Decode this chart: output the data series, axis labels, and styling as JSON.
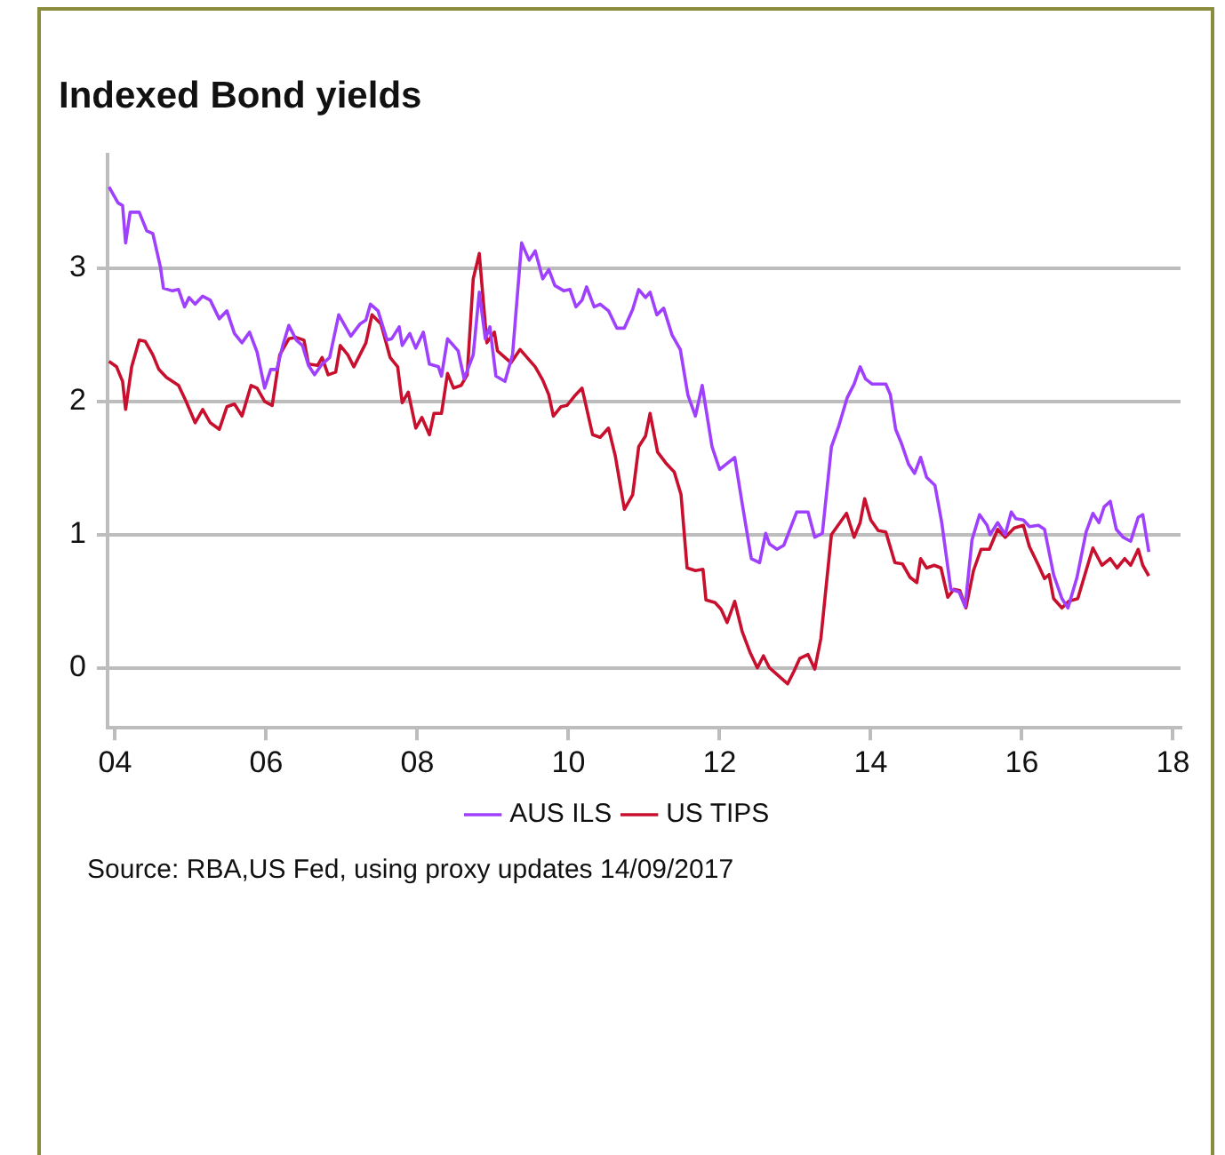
{
  "chart_data": {
    "type": "line",
    "title": "Indexed Bond yields",
    "annotations": [
      "Source: RBA,US Fed, using proxy updates 14/09/2017"
    ],
    "xlim": [
      2003.9,
      2018.1
    ],
    "xticks": [
      {
        "value": 2004,
        "label": "04"
      },
      {
        "value": 2006,
        "label": "06"
      },
      {
        "value": 2008,
        "label": "08"
      },
      {
        "value": 2010,
        "label": "10"
      },
      {
        "value": 2012,
        "label": "12"
      },
      {
        "value": 2014,
        "label": "14"
      },
      {
        "value": 2016,
        "label": "16"
      },
      {
        "value": 2018,
        "label": "18"
      }
    ],
    "ylim": [
      -0.45,
      3.85
    ],
    "yticks": [
      0,
      1,
      2,
      3
    ],
    "grid": "y",
    "legend": "bottom",
    "marker": "none",
    "line_style": "solid",
    "series": [
      {
        "name": "AUS ILS",
        "color": "#a040ff",
        "x": [
          2003.92,
          2004.04,
          2004.1,
          2004.14,
          2004.2,
          2004.32,
          2004.42,
          2004.5,
          2004.6,
          2004.64,
          2004.76,
          2004.84,
          2004.92,
          2004.98,
          2005.06,
          2005.16,
          2005.26,
          2005.38,
          2005.48,
          2005.58,
          2005.68,
          2005.78,
          2005.88,
          2005.98,
          2006.06,
          2006.14,
          2006.22,
          2006.3,
          2006.4,
          2006.48,
          2006.56,
          2006.64,
          2006.74,
          2006.84,
          2006.96,
          2007.12,
          2007.24,
          2007.32,
          2007.38,
          2007.48,
          2007.6,
          2007.66,
          2007.76,
          2007.8,
          2007.9,
          2007.98,
          2008.08,
          2008.16,
          2008.28,
          2008.32,
          2008.4,
          2008.54,
          2008.62,
          2008.74,
          2008.82,
          2008.9,
          2008.96,
          2009.04,
          2009.16,
          2009.26,
          2009.38,
          2009.48,
          2009.56,
          2009.66,
          2009.74,
          2009.82,
          2009.94,
          2010.02,
          2010.1,
          2010.18,
          2010.24,
          2010.34,
          2010.42,
          2010.53,
          2010.64,
          2010.74,
          2010.85,
          2010.93,
          2011.02,
          2011.08,
          2011.17,
          2011.26,
          2011.37,
          2011.48,
          2011.58,
          2011.68,
          2011.77,
          2011.9,
          2012.0,
          2012.2,
          2012.3,
          2012.42,
          2012.53,
          2012.61,
          2012.66,
          2012.76,
          2012.85,
          2013.02,
          2013.17,
          2013.26,
          2013.36,
          2013.48,
          2013.58,
          2013.69,
          2013.78,
          2013.86,
          2013.93,
          2014.02,
          2014.2,
          2014.26,
          2014.33,
          2014.41,
          2014.5,
          2014.58,
          2014.66,
          2014.74,
          2014.85,
          2014.94,
          2015.06,
          2015.17,
          2015.25,
          2015.34,
          2015.44,
          2015.54,
          2015.58,
          2015.68,
          2015.78,
          2015.86,
          2015.92,
          2016.02,
          2016.1,
          2016.22,
          2016.3,
          2016.42,
          2016.53,
          2016.61,
          2016.73,
          2016.85,
          2016.94,
          2017.02,
          2017.09,
          2017.17,
          2017.25,
          2017.34,
          2017.44,
          2017.54,
          2017.6,
          2017.68
        ],
        "values": [
          3.61,
          3.49,
          3.47,
          3.19,
          3.42,
          3.42,
          3.28,
          3.26,
          3.01,
          2.85,
          2.83,
          2.84,
          2.71,
          2.78,
          2.73,
          2.79,
          2.76,
          2.62,
          2.68,
          2.51,
          2.44,
          2.52,
          2.37,
          2.1,
          2.24,
          2.24,
          2.42,
          2.57,
          2.46,
          2.42,
          2.27,
          2.2,
          2.28,
          2.33,
          2.65,
          2.49,
          2.58,
          2.61,
          2.73,
          2.68,
          2.46,
          2.47,
          2.56,
          2.42,
          2.51,
          2.4,
          2.52,
          2.28,
          2.26,
          2.19,
          2.47,
          2.38,
          2.17,
          2.35,
          2.82,
          2.47,
          2.56,
          2.19,
          2.15,
          2.35,
          3.19,
          3.06,
          3.13,
          2.92,
          2.99,
          2.87,
          2.83,
          2.84,
          2.71,
          2.76,
          2.86,
          2.71,
          2.73,
          2.68,
          2.55,
          2.55,
          2.69,
          2.84,
          2.78,
          2.82,
          2.65,
          2.7,
          2.5,
          2.39,
          2.05,
          1.89,
          2.12,
          1.66,
          1.49,
          1.58,
          1.23,
          0.82,
          0.79,
          1.01,
          0.93,
          0.89,
          0.92,
          1.17,
          1.17,
          0.98,
          1.01,
          1.66,
          1.82,
          2.03,
          2.13,
          2.26,
          2.17,
          2.13,
          2.13,
          2.05,
          1.79,
          1.68,
          1.53,
          1.46,
          1.58,
          1.43,
          1.37,
          1.09,
          0.59,
          0.57,
          0.46,
          0.96,
          1.15,
          1.07,
          1.0,
          1.09,
          1.0,
          1.17,
          1.12,
          1.11,
          1.06,
          1.07,
          1.04,
          0.7,
          0.52,
          0.45,
          0.68,
          1.02,
          1.16,
          1.09,
          1.21,
          1.25,
          1.04,
          0.98,
          0.95,
          1.13,
          1.15,
          0.87
        ]
      },
      {
        "name": "US TIPS",
        "color": "#c8102e",
        "x": [
          2003.92,
          2004.02,
          2004.1,
          2004.14,
          2004.22,
          2004.32,
          2004.4,
          2004.5,
          2004.58,
          2004.68,
          2004.84,
          2004.94,
          2005.06,
          2005.16,
          2005.26,
          2005.38,
          2005.48,
          2005.58,
          2005.68,
          2005.8,
          2005.88,
          2005.98,
          2006.08,
          2006.18,
          2006.3,
          2006.4,
          2006.5,
          2006.56,
          2006.68,
          2006.74,
          2006.82,
          2006.92,
          2006.98,
          2007.08,
          2007.16,
          2007.32,
          2007.4,
          2007.52,
          2007.64,
          2007.74,
          2007.8,
          2007.88,
          2007.98,
          2008.06,
          2008.16,
          2008.22,
          2008.32,
          2008.4,
          2008.48,
          2008.58,
          2008.66,
          2008.74,
          2008.82,
          2008.92,
          2009.02,
          2009.06,
          2009.24,
          2009.36,
          2009.56,
          2009.66,
          2009.74,
          2009.8,
          2009.9,
          2009.98,
          2010.08,
          2010.18,
          2010.32,
          2010.42,
          2010.53,
          2010.62,
          2010.74,
          2010.85,
          2010.93,
          2011.02,
          2011.08,
          2011.18,
          2011.3,
          2011.4,
          2011.49,
          2011.57,
          2011.68,
          2011.78,
          2011.82,
          2011.94,
          2012.02,
          2012.1,
          2012.2,
          2012.3,
          2012.4,
          2012.5,
          2012.58,
          2012.66,
          2012.78,
          2012.9,
          2012.98,
          2013.06,
          2013.17,
          2013.26,
          2013.34,
          2013.48,
          2013.58,
          2013.68,
          2013.78,
          2013.86,
          2013.92,
          2014.0,
          2014.1,
          2014.2,
          2014.32,
          2014.42,
          2014.52,
          2014.61,
          2014.66,
          2014.74,
          2014.84,
          2014.93,
          2015.02,
          2015.1,
          2015.18,
          2015.26,
          2015.36,
          2015.46,
          2015.57,
          2015.68,
          2015.78,
          2015.9,
          2016.02,
          2016.1,
          2016.22,
          2016.3,
          2016.36,
          2016.42,
          2016.53,
          2016.62,
          2016.74,
          2016.85,
          2016.94,
          2017.06,
          2017.17,
          2017.26,
          2017.36,
          2017.44,
          2017.54,
          2017.6,
          2017.68
        ],
        "values": [
          2.3,
          2.26,
          2.15,
          1.94,
          2.26,
          2.46,
          2.45,
          2.35,
          2.24,
          2.18,
          2.12,
          2.0,
          1.84,
          1.94,
          1.84,
          1.79,
          1.96,
          1.98,
          1.89,
          2.12,
          2.1,
          2.0,
          1.97,
          2.35,
          2.47,
          2.48,
          2.46,
          2.28,
          2.27,
          2.33,
          2.2,
          2.22,
          2.42,
          2.35,
          2.26,
          2.44,
          2.65,
          2.58,
          2.33,
          2.26,
          1.99,
          2.07,
          1.8,
          1.88,
          1.75,
          1.91,
          1.91,
          2.21,
          2.1,
          2.12,
          2.2,
          2.92,
          3.11,
          2.44,
          2.52,
          2.38,
          2.29,
          2.39,
          2.26,
          2.16,
          2.05,
          1.89,
          1.96,
          1.97,
          2.04,
          2.1,
          1.75,
          1.73,
          1.8,
          1.59,
          1.19,
          1.3,
          1.66,
          1.74,
          1.91,
          1.62,
          1.53,
          1.47,
          1.3,
          0.75,
          0.73,
          0.74,
          0.51,
          0.49,
          0.44,
          0.34,
          0.5,
          0.27,
          0.12,
          0.0,
          0.09,
          0.0,
          -0.06,
          -0.12,
          -0.03,
          0.07,
          0.1,
          -0.01,
          0.22,
          1.0,
          1.08,
          1.16,
          0.98,
          1.09,
          1.27,
          1.11,
          1.03,
          1.02,
          0.79,
          0.78,
          0.68,
          0.64,
          0.82,
          0.75,
          0.77,
          0.75,
          0.53,
          0.59,
          0.58,
          0.45,
          0.73,
          0.89,
          0.89,
          1.04,
          0.98,
          1.05,
          1.07,
          0.91,
          0.77,
          0.67,
          0.7,
          0.52,
          0.45,
          0.5,
          0.52,
          0.73,
          0.9,
          0.77,
          0.82,
          0.75,
          0.82,
          0.77,
          0.89,
          0.77,
          0.69
        ]
      }
    ]
  }
}
